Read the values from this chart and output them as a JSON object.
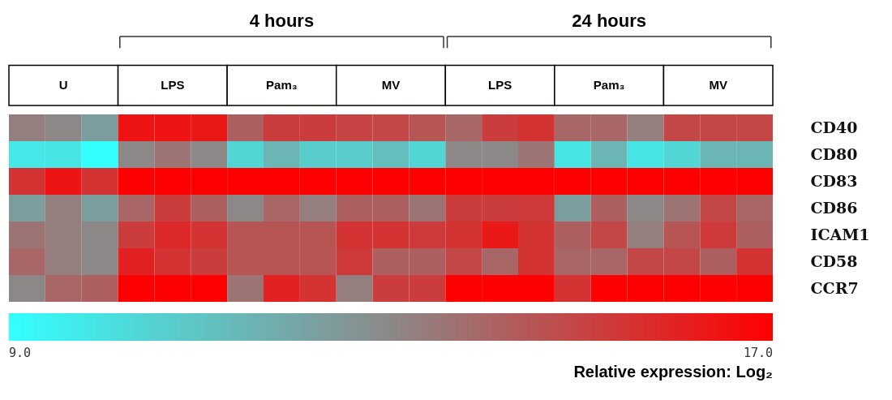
{
  "chart_data": {
    "type": "heatmap",
    "categories": [
      null,
      null,
      null,
      null,
      null,
      null,
      null,
      null,
      null,
      null,
      null,
      null,
      null,
      null,
      null,
      null,
      null,
      null,
      null,
      null,
      null
    ],
    "y_categories": [
      "CD40",
      "CD80",
      "CD83",
      "CD86",
      "ICAM1",
      "CD58",
      "CCR7"
    ],
    "cells": [
      [
        13.3,
        13.0,
        12.3,
        16.4,
        16.4,
        16.3,
        14.2,
        15.2,
        15.2,
        15.0,
        14.9,
        14.5,
        14.0,
        15.2,
        15.5,
        14.0,
        14.0,
        13.3,
        14.9,
        14.9,
        14.9
      ],
      [
        9.8,
        9.9,
        9.0,
        13.0,
        13.6,
        13.0,
        10.4,
        11.5,
        10.7,
        10.7,
        11.2,
        10.4,
        13.0,
        13.0,
        13.6,
        9.9,
        11.5,
        9.9,
        10.4,
        11.5,
        11.5
      ],
      [
        15.5,
        16.4,
        15.5,
        17,
        17,
        17,
        17,
        17,
        17,
        17,
        17,
        17,
        17,
        17,
        17,
        17,
        17,
        17,
        17,
        17,
        17
      ],
      [
        12.3,
        13.3,
        12.3,
        14.0,
        15.2,
        14.2,
        13.0,
        14.0,
        13.3,
        14.2,
        14.2,
        13.6,
        15.2,
        15.2,
        15.3,
        12.3,
        14.2,
        13.0,
        13.6,
        14.9,
        14.0
      ],
      [
        13.6,
        13.3,
        13.0,
        15.2,
        15.8,
        15.5,
        14.5,
        14.5,
        14.5,
        15.5,
        15.5,
        15.3,
        15.5,
        16.3,
        15.5,
        14.2,
        14.9,
        13.3,
        14.5,
        15.3,
        14.2
      ],
      [
        14.0,
        13.3,
        13.0,
        16.0,
        15.5,
        15.2,
        14.5,
        14.5,
        14.5,
        15.3,
        14.2,
        14.2,
        14.9,
        14.0,
        15.5,
        14.0,
        14.0,
        14.9,
        14.9,
        14.2,
        15.5
      ],
      [
        13.0,
        14.0,
        14.2,
        17,
        17,
        17,
        13.6,
        16.0,
        15.5,
        13.3,
        15.2,
        15.2,
        17,
        17,
        17,
        15.5,
        17,
        17,
        17,
        17,
        17
      ]
    ],
    "clim": [
      9,
      17
    ],
    "cticks": [
      {
        "value": 9,
        "label": "9.0"
      },
      {
        "value": 17,
        "label": "17.0"
      }
    ],
    "clabel": "Relative expression: Log₂",
    "annotations": [
      "4 hours",
      "24 hours",
      "U",
      "LPS",
      "Pam₃",
      "MV",
      "LPS",
      "Pam₃",
      "MV"
    ]
  }
}
